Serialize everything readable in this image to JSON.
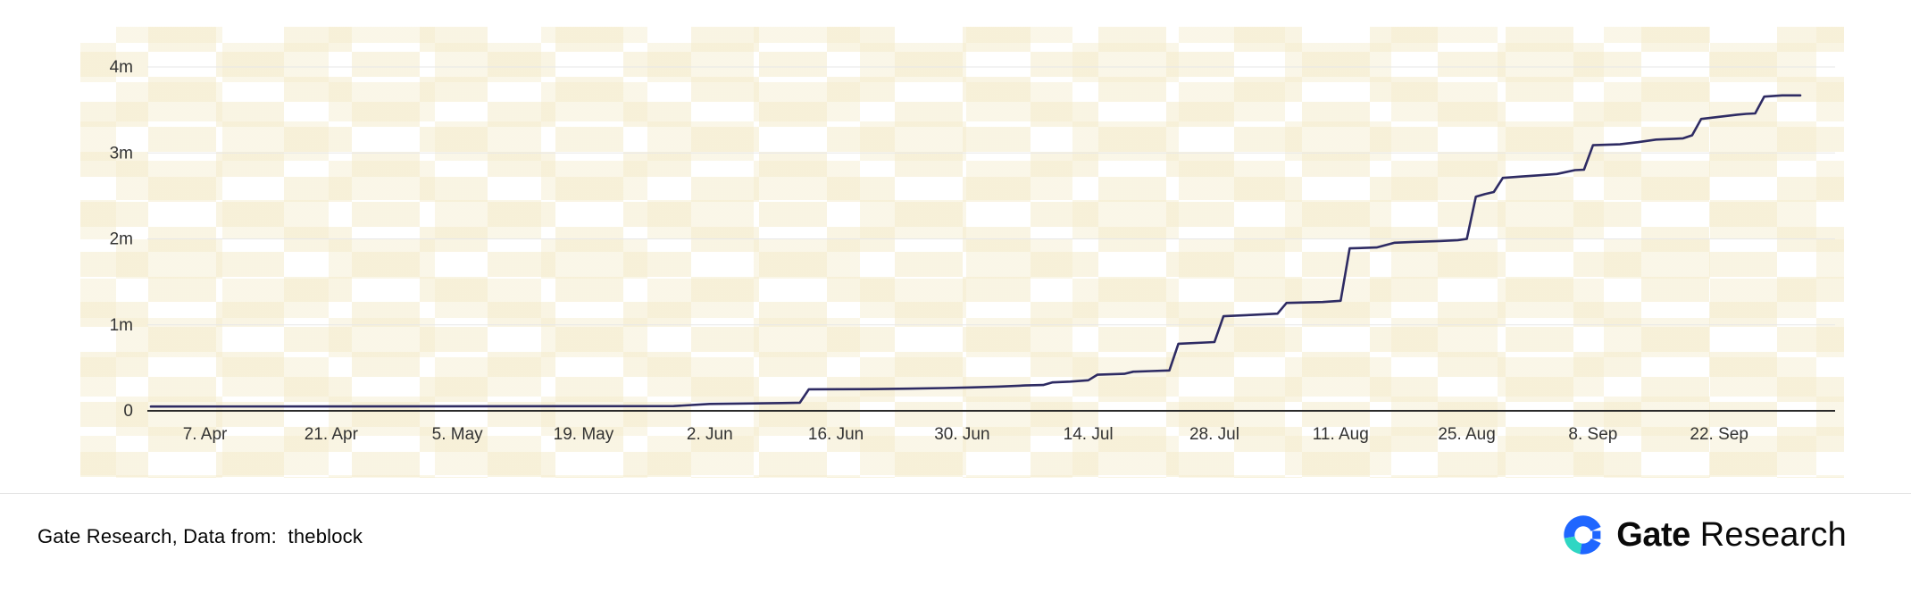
{
  "chart_data": {
    "type": "line",
    "title": "",
    "xlabel": "",
    "ylabel": "",
    "x_unit": "days since 1 Apr",
    "xlim_days": [
      0,
      183
    ],
    "ylim": [
      0,
      4000000
    ],
    "grid": true,
    "legend": false,
    "line_color": "#2e2b63",
    "grid_color": "#e7e7e7",
    "axis_color": "#2a2a2a",
    "tick_color": "#333333",
    "y_ticks": [
      {
        "value": 0,
        "label": "0"
      },
      {
        "value": 1000000,
        "label": "1m"
      },
      {
        "value": 2000000,
        "label": "2m"
      },
      {
        "value": 3000000,
        "label": "3m"
      },
      {
        "value": 4000000,
        "label": "4m"
      }
    ],
    "x_ticks": [
      {
        "day": 6,
        "label": "7. Apr"
      },
      {
        "day": 20,
        "label": "21. Apr"
      },
      {
        "day": 34,
        "label": "5. May"
      },
      {
        "day": 48,
        "label": "19. May"
      },
      {
        "day": 62,
        "label": "2. Jun"
      },
      {
        "day": 76,
        "label": "16. Jun"
      },
      {
        "day": 90,
        "label": "30. Jun"
      },
      {
        "day": 104,
        "label": "14. Jul"
      },
      {
        "day": 118,
        "label": "28. Jul"
      },
      {
        "day": 132,
        "label": "11. Aug"
      },
      {
        "day": 146,
        "label": "25. Aug"
      },
      {
        "day": 160,
        "label": "8. Sep"
      },
      {
        "day": 174,
        "label": "22. Sep"
      }
    ],
    "points": [
      [
        0,
        50000
      ],
      [
        58,
        55000
      ],
      [
        62,
        80000
      ],
      [
        70,
        90000
      ],
      [
        72,
        95000
      ],
      [
        73,
        250000
      ],
      [
        80,
        252000
      ],
      [
        84,
        258000
      ],
      [
        88,
        265000
      ],
      [
        91,
        272000
      ],
      [
        94,
        282000
      ],
      [
        97,
        295000
      ],
      [
        99,
        300000
      ],
      [
        100,
        330000
      ],
      [
        102,
        340000
      ],
      [
        104,
        355000
      ],
      [
        105,
        420000
      ],
      [
        108,
        430000
      ],
      [
        109,
        455000
      ],
      [
        111,
        462000
      ],
      [
        113,
        470000
      ],
      [
        114,
        780000
      ],
      [
        117,
        795000
      ],
      [
        118,
        800000
      ],
      [
        119,
        1100000
      ],
      [
        122,
        1115000
      ],
      [
        124,
        1125000
      ],
      [
        125,
        1130000
      ],
      [
        126,
        1255000
      ],
      [
        130,
        1265000
      ],
      [
        132,
        1280000
      ],
      [
        133,
        1890000
      ],
      [
        136,
        1900000
      ],
      [
        138,
        1955000
      ],
      [
        140,
        1965000
      ],
      [
        143,
        1975000
      ],
      [
        145,
        1985000
      ],
      [
        146,
        2000000
      ],
      [
        147,
        2490000
      ],
      [
        148,
        2520000
      ],
      [
        149,
        2545000
      ],
      [
        150,
        2710000
      ],
      [
        152,
        2725000
      ],
      [
        154,
        2740000
      ],
      [
        156,
        2755000
      ],
      [
        158,
        2800000
      ],
      [
        159,
        2805000
      ],
      [
        160,
        3090000
      ],
      [
        163,
        3100000
      ],
      [
        165,
        3125000
      ],
      [
        167,
        3155000
      ],
      [
        169,
        3165000
      ],
      [
        170,
        3170000
      ],
      [
        171,
        3205000
      ],
      [
        172,
        3395000
      ],
      [
        174,
        3420000
      ],
      [
        176,
        3445000
      ],
      [
        177,
        3455000
      ],
      [
        178,
        3460000
      ],
      [
        179,
        3655000
      ],
      [
        181,
        3670000
      ],
      [
        183,
        3670000
      ]
    ]
  },
  "footer": {
    "source_text": "Gate Research, Data from:  theblock",
    "brand_bold": "Gate",
    "brand_light": "Research"
  },
  "icons": {
    "brand_logo": "gate-logo-icon"
  },
  "colors": {
    "line": "#2e2b63",
    "brand_blue": "#1f66ff",
    "brand_teal": "#2fd6c3",
    "watermark_tile": "#f6efd2",
    "divider": "#e2e2e2",
    "text": "#0a0a0a"
  }
}
